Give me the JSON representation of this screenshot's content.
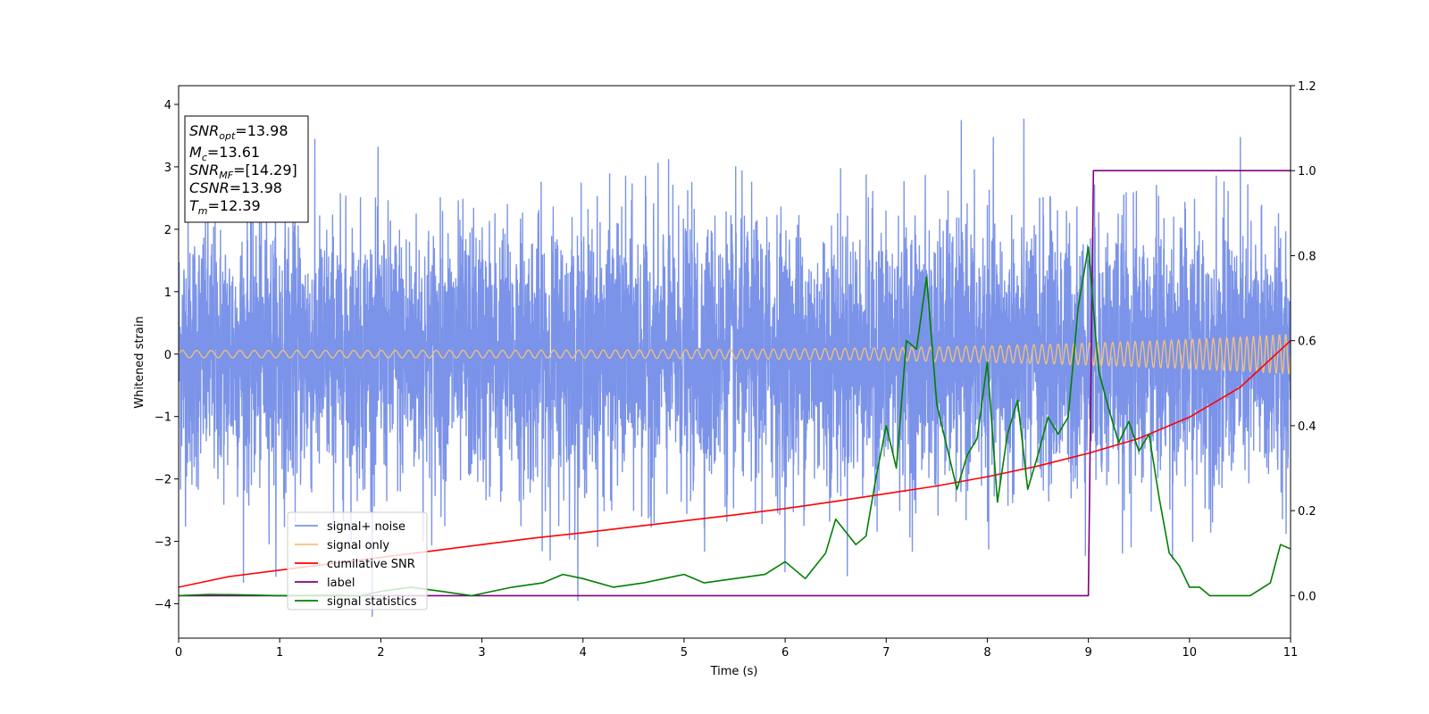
{
  "chart_data": {
    "type": "line",
    "xlabel": "Time (s)",
    "ylabel": "Whitened strain",
    "xlim": [
      0,
      11
    ],
    "ylim_left": [
      -4.55,
      4.3
    ],
    "ylim_right": [
      -0.1,
      1.2
    ],
    "x_ticks": [
      "0",
      "1",
      "2",
      "3",
      "4",
      "5",
      "6",
      "7",
      "8",
      "9",
      "10",
      "11"
    ],
    "y_left_ticks": [
      "4",
      "3",
      "2",
      "1",
      "0",
      "−1",
      "−2",
      "−3",
      "−4"
    ],
    "y_right_ticks": [
      "1.2",
      "1.0",
      "0.8",
      "0.6",
      "0.4",
      "0.2",
      "0.0"
    ],
    "annotation": {
      "lines": [
        {
          "main": "SNR",
          "sub": "opt",
          "rest": "=13.98",
          "italic": true
        },
        {
          "main": "M",
          "sub": "c",
          "rest": "=13.61",
          "italic": true
        },
        {
          "main": "SNR",
          "sub": "MF",
          "rest": "=[14.29]",
          "italic": true
        },
        {
          "main": "CSNR",
          "sub": "",
          "rest": "=13.98",
          "italic": true
        },
        {
          "main": "T",
          "sub": "m",
          "rest": "=12.39",
          "italic": true
        }
      ]
    },
    "legend": {
      "placement": "lower-left",
      "entries": [
        "signal+ noise",
        "signal only",
        "cumilative SNR",
        "label",
        "signal statistics"
      ]
    },
    "series": [
      {
        "name": "signal+ noise",
        "axis": "left",
        "color": "#7b93e8",
        "kind": "noise",
        "amplitude_std": 1.05,
        "min": -4.2,
        "max": 3.9
      },
      {
        "name": "signal only",
        "axis": "left",
        "color": "#f5c17a",
        "kind": "chirp",
        "amplitude_start": 0.06,
        "amplitude_end": 0.32,
        "frequency_start_hz": 7,
        "frequency_end_hz": 16
      },
      {
        "name": "cumilative SNR",
        "axis": "right",
        "color": "#ff0000",
        "x": [
          0,
          0.5,
          1,
          1.5,
          2,
          2.5,
          3,
          3.5,
          4,
          4.5,
          5,
          5.5,
          6,
          6.5,
          7,
          7.5,
          8,
          8.5,
          9,
          9.5,
          10,
          10.5,
          11
        ],
        "y": [
          0.02,
          0.045,
          0.06,
          0.075,
          0.09,
          0.105,
          0.12,
          0.135,
          0.148,
          0.162,
          0.176,
          0.19,
          0.205,
          0.222,
          0.24,
          0.258,
          0.28,
          0.305,
          0.335,
          0.37,
          0.42,
          0.49,
          0.6
        ]
      },
      {
        "name": "label",
        "axis": "right",
        "color": "#800080",
        "x": [
          0,
          9.0,
          9.05,
          11
        ],
        "y": [
          0.0,
          0.0,
          1.0,
          1.0
        ]
      },
      {
        "name": "signal statistics",
        "axis": "right",
        "color": "#008000",
        "x": [
          0,
          0.3,
          0.6,
          1.0,
          1.5,
          1.8,
          2.0,
          2.3,
          2.6,
          2.9,
          3.1,
          3.3,
          3.6,
          3.8,
          4.0,
          4.3,
          4.6,
          4.8,
          5.0,
          5.2,
          5.5,
          5.8,
          6.0,
          6.2,
          6.4,
          6.5,
          6.7,
          6.8,
          6.9,
          7.0,
          7.1,
          7.2,
          7.3,
          7.4,
          7.5,
          7.6,
          7.7,
          7.8,
          7.9,
          8.0,
          8.1,
          8.2,
          8.3,
          8.4,
          8.5,
          8.6,
          8.7,
          8.8,
          8.9,
          9.0,
          9.1,
          9.2,
          9.3,
          9.4,
          9.5,
          9.6,
          9.7,
          9.8,
          9.9,
          10.0,
          10.1,
          10.2,
          10.4,
          10.6,
          10.8,
          10.9,
          11.0
        ],
        "y": [
          0.0,
          0.003,
          0.002,
          0.0,
          0.001,
          0.0,
          0.01,
          0.02,
          0.01,
          0.0,
          0.01,
          0.02,
          0.03,
          0.05,
          0.04,
          0.02,
          0.03,
          0.04,
          0.05,
          0.03,
          0.04,
          0.05,
          0.08,
          0.04,
          0.1,
          0.18,
          0.12,
          0.14,
          0.28,
          0.4,
          0.3,
          0.6,
          0.58,
          0.75,
          0.45,
          0.35,
          0.25,
          0.33,
          0.37,
          0.55,
          0.22,
          0.38,
          0.46,
          0.25,
          0.33,
          0.42,
          0.38,
          0.42,
          0.68,
          0.82,
          0.53,
          0.44,
          0.36,
          0.41,
          0.34,
          0.38,
          0.23,
          0.1,
          0.07,
          0.02,
          0.02,
          0.0,
          0.0,
          0.0,
          0.03,
          0.12,
          0.11
        ]
      }
    ]
  }
}
